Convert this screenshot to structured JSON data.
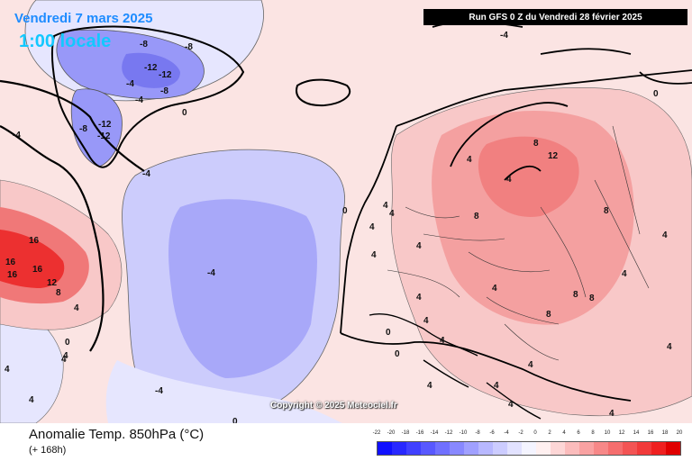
{
  "header": {
    "date_title": "Vendredi 7 mars 2025",
    "time_title": "1:00 locale",
    "run_banner": "Run GFS 0 Z du Vendredi 28 février 2025"
  },
  "copyright": "Copyright © 2025 Meteociel.fr",
  "footer": {
    "field_title": "Anomalie Temp. 850hPa (°C)",
    "lead_time": "(+ 168h)"
  },
  "legend": {
    "labels": [
      "-22",
      "-20",
      "-18",
      "-16",
      "-14",
      "-12",
      "-10",
      "-8",
      "-6",
      "-4",
      "-2",
      "0",
      "2",
      "4",
      "6",
      "8",
      "10",
      "12",
      "14",
      "16",
      "18",
      "20"
    ],
    "colors": [
      "#1010ff",
      "#2828ff",
      "#4040ff",
      "#5858ff",
      "#7070ff",
      "#8888ff",
      "#a0a0ff",
      "#b8b8ff",
      "#ccccff",
      "#e2e2ff",
      "#f4f4ff",
      "#fff0f0",
      "#fdd6d6",
      "#fbbcbc",
      "#f9a2a2",
      "#f78888",
      "#f56e6e",
      "#f35454",
      "#f13a3a",
      "#ef2020",
      "#e00000"
    ]
  },
  "map": {
    "colors": {
      "background": "#fbe4e3",
      "cold_strong": "#7878f0",
      "cold_medium": "#9898f8",
      "cold_light": "#ccccfc",
      "cold_faint": "#e6e6fe",
      "warm_light": "#f8c8c8",
      "warm_medium": "#f4a0a0",
      "warm_strong": "#f07878",
      "warm_hot": "#ec3030"
    },
    "contour_labels": [
      "-8",
      "-12",
      "-12",
      "-8",
      "-12",
      "-8",
      "-12",
      "-8",
      "-4",
      "-4",
      "-4",
      "0",
      "-4",
      "-4",
      "-4",
      "0",
      "-4",
      "0",
      "4",
      "4",
      "8",
      "12",
      "8",
      "8",
      "4",
      "4",
      "4",
      "4",
      "16",
      "16",
      "16",
      "16",
      "12",
      "8",
      "4",
      "0",
      "4",
      "4",
      "4",
      "0",
      "0",
      "4",
      "4",
      "8",
      "8",
      "8",
      "4",
      "4",
      "4",
      "0",
      "4",
      "4",
      "4",
      "4",
      "4",
      "4",
      "4",
      "4",
      "4"
    ]
  }
}
